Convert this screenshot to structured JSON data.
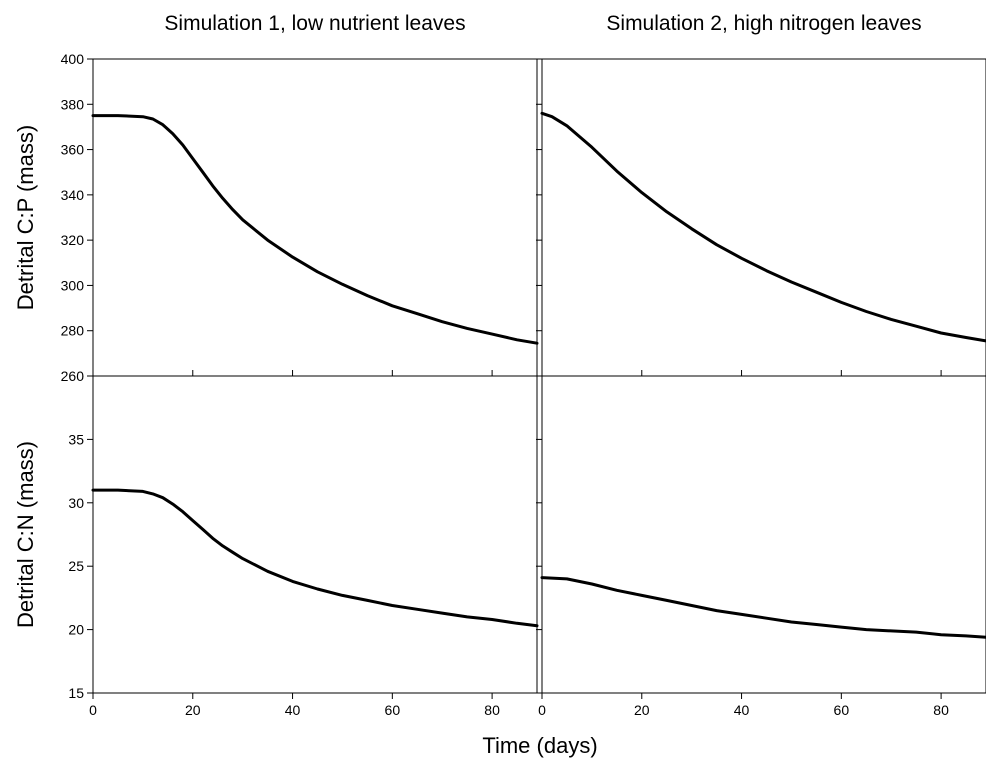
{
  "chart_data": [
    {
      "type": "line",
      "panel": "top-left",
      "title": "Simulation 1, low nutrient leaves",
      "ylabel": "Detrital C:P (mass)",
      "xlabel": "",
      "xlim": [
        0,
        89
      ],
      "ylim": [
        260,
        400
      ],
      "xticks": [
        0,
        20,
        40,
        60,
        80
      ],
      "yticks": [
        260,
        280,
        300,
        320,
        340,
        360,
        380,
        400
      ],
      "x": [
        0,
        5,
        10,
        12,
        14,
        16,
        18,
        20,
        22,
        24,
        26,
        28,
        30,
        35,
        40,
        45,
        50,
        55,
        60,
        65,
        70,
        75,
        80,
        85,
        89
      ],
      "series": [
        {
          "values": [
            375,
            375,
            374.5,
            373.5,
            371,
            367,
            362,
            356,
            350,
            344,
            338.5,
            333.5,
            329,
            320,
            312.5,
            306,
            300.5,
            295.5,
            291,
            287.5,
            284,
            281,
            278.5,
            276,
            274.5
          ]
        }
      ]
    },
    {
      "type": "line",
      "panel": "top-right",
      "title": "Simulation 2, high nitrogen leaves",
      "ylabel": "",
      "xlabel": "",
      "xlim": [
        0,
        89
      ],
      "ylim": [
        260,
        400
      ],
      "xticks": [
        0,
        20,
        40,
        60,
        80
      ],
      "yticks": [
        260,
        280,
        300,
        320,
        340,
        360,
        380,
        400
      ],
      "x": [
        0,
        2,
        5,
        10,
        15,
        20,
        25,
        30,
        35,
        40,
        45,
        50,
        55,
        60,
        65,
        70,
        75,
        80,
        85,
        89
      ],
      "series": [
        {
          "values": [
            376,
            374.5,
            370.5,
            361,
            350.5,
            341,
            332.5,
            325,
            318,
            312,
            306.5,
            301.5,
            297,
            292.5,
            288.5,
            285,
            282,
            279,
            277,
            275.5
          ]
        }
      ]
    },
    {
      "type": "line",
      "panel": "bottom-left",
      "title": "",
      "ylabel": "Detrital C:N (mass)",
      "xlabel": "",
      "xlim": [
        0,
        89
      ],
      "ylim": [
        15,
        40
      ],
      "xticks": [
        0,
        20,
        40,
        60,
        80
      ],
      "yticks": [
        15,
        20,
        25,
        30,
        35
      ],
      "x": [
        0,
        5,
        10,
        12,
        14,
        16,
        18,
        20,
        22,
        24,
        26,
        28,
        30,
        35,
        40,
        45,
        50,
        55,
        60,
        65,
        70,
        75,
        80,
        85,
        89
      ],
      "series": [
        {
          "values": [
            31,
            31,
            30.9,
            30.7,
            30.4,
            29.9,
            29.3,
            28.6,
            27.9,
            27.2,
            26.6,
            26.1,
            25.6,
            24.6,
            23.8,
            23.2,
            22.7,
            22.3,
            21.9,
            21.6,
            21.3,
            21,
            20.8,
            20.5,
            20.3
          ]
        }
      ]
    },
    {
      "type": "line",
      "panel": "bottom-right",
      "title": "",
      "ylabel": "",
      "xlabel": "",
      "xlim": [
        0,
        89
      ],
      "ylim": [
        15,
        40
      ],
      "xticks": [
        0,
        20,
        40,
        60,
        80
      ],
      "yticks": [
        15,
        20,
        25,
        30,
        35
      ],
      "x": [
        0,
        5,
        10,
        15,
        20,
        25,
        30,
        35,
        40,
        45,
        50,
        55,
        60,
        65,
        70,
        75,
        80,
        85,
        89
      ],
      "series": [
        {
          "values": [
            24.1,
            24,
            23.6,
            23.1,
            22.7,
            22.3,
            21.9,
            21.5,
            21.2,
            20.9,
            20.6,
            20.4,
            20.2,
            20,
            19.9,
            19.8,
            19.6,
            19.5,
            19.4
          ]
        }
      ]
    }
  ],
  "figure": {
    "xlabel": "Time (days)"
  }
}
